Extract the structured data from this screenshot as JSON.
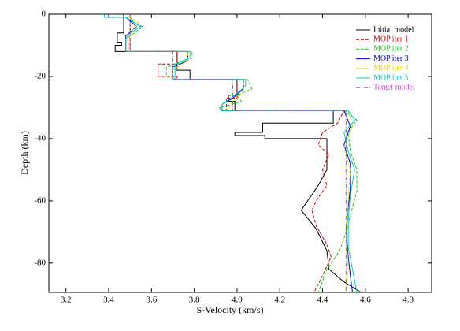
{
  "chart_data": {
    "type": "line",
    "x_label": "S-Velocity (km/s)",
    "y_label": "Depth (km)",
    "xlim": [
      3.12,
      4.91
    ],
    "ylim": [
      -89.4,
      0
    ],
    "xticks": [
      3.2,
      3.4,
      3.6,
      3.8,
      {
        "value": 4,
        "label": "4.0"
      },
      4.2,
      4.4,
      4.6,
      4.8
    ],
    "yticks": [
      0,
      -20,
      -40,
      -60,
      -80
    ],
    "legend": "upper right",
    "series": [
      {
        "name": "Initial model",
        "color": "#000000",
        "dash": "solid",
        "x": [
          3.47,
          3.47,
          3.44,
          3.44,
          3.46,
          3.46,
          3.43,
          3.43,
          3.72,
          3.72,
          3.78,
          3.78,
          4.0,
          4.0,
          3.96,
          3.96,
          3.99,
          3.99,
          4.45,
          4.45,
          4.12,
          4.12,
          3.99,
          3.99,
          4.13,
          4.13,
          4.42,
          4.42,
          4.38,
          4.33,
          4.3,
          4.37,
          4.42,
          4.43,
          4.5,
          4.58
        ],
        "values": [
          0,
          -6,
          -6,
          -9,
          -9,
          -10,
          -10,
          -12,
          -12,
          -18,
          -18,
          -21,
          -21,
          -26,
          -26,
          -28,
          -28,
          -31,
          -31,
          -35,
          -35,
          -38,
          -38,
          -39,
          -39,
          -40,
          -40,
          -50,
          -55,
          -60,
          -63,
          -69,
          -76,
          -82,
          -86,
          -89.4
        ]
      },
      {
        "name": "MOP iter 1",
        "color": "#cc0000",
        "dash": "dashed",
        "x": [
          3.5,
          3.5,
          3.72,
          3.72,
          3.63,
          3.63,
          3.72,
          3.72,
          4.0,
          4.0,
          3.95,
          3.95,
          4.5,
          4.47,
          4.4,
          4.38,
          4.43,
          4.4,
          4.42,
          4.37,
          4.35,
          4.37,
          4.42,
          4.44,
          4.4,
          4.36
        ],
        "values": [
          0,
          -12,
          -12,
          -16,
          -16,
          -20,
          -20,
          -21,
          -21,
          -27,
          -27,
          -31,
          -31,
          -35,
          -38,
          -42,
          -45,
          -50,
          -55,
          -60,
          -63,
          -68,
          -74,
          -78,
          -84,
          -89.4
        ]
      },
      {
        "name": "MOP iter 2",
        "color": "#22cc22",
        "dash": "dashed",
        "x": [
          3.4,
          3.4,
          3.5,
          3.52,
          3.56,
          3.52,
          3.48,
          3.48,
          3.79,
          3.79,
          3.72,
          3.67,
          3.67,
          3.72,
          4.05,
          4.07,
          4.0,
          4.02,
          3.92,
          3.92,
          4.5,
          4.56,
          4.52,
          4.53,
          4.56,
          4.56,
          4.54,
          4.51,
          4.48,
          4.42,
          4.38
        ],
        "values": [
          0,
          -1,
          -1,
          -3,
          -4,
          -6,
          -8,
          -12,
          -12,
          -14,
          -16,
          -17,
          -20,
          -21,
          -21,
          -24,
          -26,
          -28,
          -30,
          -31,
          -31,
          -34,
          -38,
          -44,
          -50,
          -57,
          -62,
          -70,
          -76,
          -82,
          -89.4
        ]
      },
      {
        "name": "MOP iter 3",
        "color": "#0000cc",
        "dash": "solid",
        "x": [
          3.4,
          3.4,
          3.48,
          3.53,
          3.48,
          3.48,
          3.77,
          3.77,
          3.7,
          3.7,
          4.03,
          4.03,
          3.98,
          3.93,
          3.93,
          4.5,
          4.53,
          4.5,
          4.53,
          4.53,
          4.52,
          4.51,
          4.52,
          4.53,
          4.54
        ],
        "values": [
          0,
          -1,
          -1,
          -4,
          -7,
          -12,
          -12,
          -15,
          -17,
          -21,
          -21,
          -24,
          -27,
          -29,
          -31,
          -31,
          -36,
          -42,
          -48,
          -56,
          -62,
          -70,
          -78,
          -84,
          -89.4
        ]
      },
      {
        "name": "MOP iter 4",
        "color": "#e6d800",
        "dash": "dashed",
        "x": [
          3.42,
          3.42,
          3.5,
          3.54,
          3.5,
          3.49,
          3.77,
          3.77,
          3.7,
          3.7,
          4.03,
          4.03,
          3.98,
          3.95,
          4.52,
          4.54,
          4.5,
          4.53,
          4.52,
          4.51,
          4.52,
          4.51
        ],
        "values": [
          0,
          -1,
          -1,
          -3,
          -6,
          -12,
          -12,
          -15,
          -18,
          -21,
          -21,
          -25,
          -28,
          -31,
          -31,
          -36,
          -43,
          -50,
          -60,
          -72,
          -80,
          -89.4
        ]
      },
      {
        "name": "MOP iter 5",
        "color": "#00cccc",
        "dash": "solid",
        "x": [
          3.38,
          3.38,
          3.48,
          3.55,
          3.5,
          3.48,
          3.48,
          3.78,
          3.78,
          3.71,
          3.71,
          4.04,
          4.04,
          3.99,
          3.93,
          3.93,
          4.52,
          4.55,
          4.5,
          4.52,
          4.55,
          4.53,
          4.52,
          4.52,
          4.54,
          4.56
        ],
        "values": [
          0,
          -1,
          -1,
          -4,
          -6,
          -8,
          -12,
          -12,
          -14,
          -16,
          -21,
          -21,
          -23,
          -26,
          -29,
          -31,
          -31,
          -34,
          -38,
          -44,
          -50,
          -58,
          -66,
          -75,
          -82,
          -89.4
        ]
      },
      {
        "name": "Target model",
        "color": "#cc44cc",
        "dash": "dashdot",
        "x": [
          3.5,
          3.5,
          3.7,
          3.7,
          3.98,
          3.98,
          4.51,
          4.51
        ],
        "values": [
          0,
          -12,
          -12,
          -21,
          -21,
          -31,
          -31,
          -89.4
        ]
      }
    ]
  }
}
